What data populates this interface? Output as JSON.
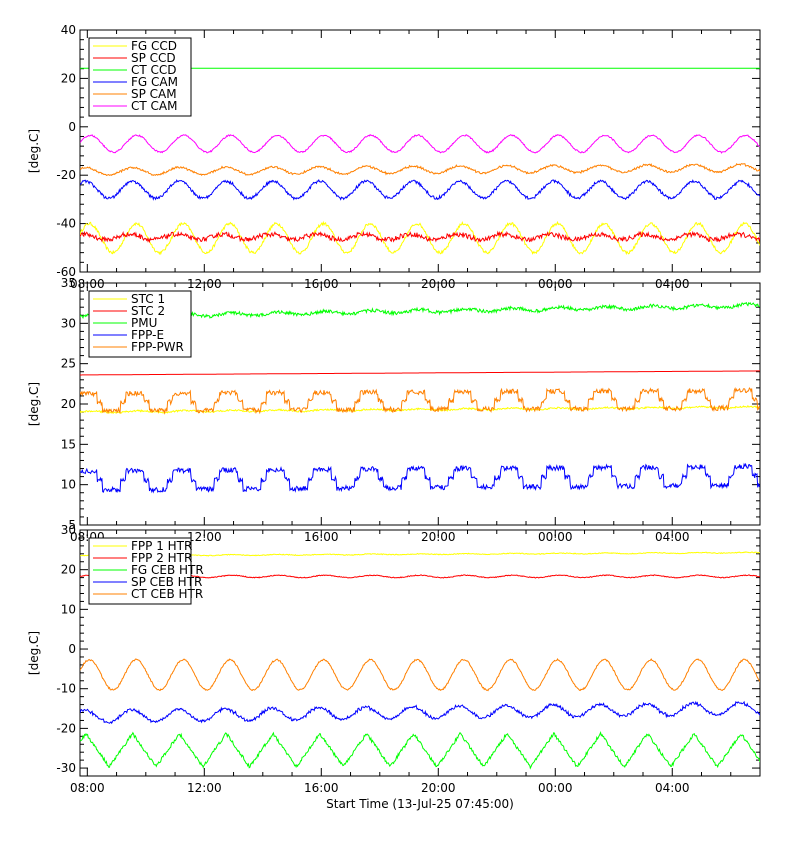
{
  "chart_data": [
    {
      "type": "line",
      "ylabel": "[deg.C]",
      "ylim": [
        -60,
        40
      ],
      "yticks": [
        -60,
        -40,
        -20,
        0,
        20,
        40
      ],
      "xlim": [
        0,
        23.25
      ],
      "xticks": [
        0.25,
        4.25,
        8.25,
        12.25,
        16.25,
        20.25
      ],
      "xtick_labels": [
        "08:00",
        "12:00",
        "16:00",
        "20:00",
        "00:00",
        "04:00"
      ],
      "legend_position": "top-left",
      "series": [
        {
          "name": "FG CCD",
          "color": "#ffff00",
          "base": -46,
          "amp": 6,
          "period": 1.6,
          "phase": 0.3,
          "noise": 0.6,
          "kind": "sine",
          "trend": 0
        },
        {
          "name": "SP CCD",
          "color": "#ff0000",
          "base": -45.5,
          "amp": 1.2,
          "period": 1.6,
          "phase": 1.2,
          "noise": 0.9,
          "kind": "step",
          "trend": 0
        },
        {
          "name": "CT CCD",
          "color": "#00ff00",
          "base": 24.2,
          "amp": 0,
          "period": 1.6,
          "phase": 0,
          "noise": 0,
          "kind": "flat",
          "trend": 0
        },
        {
          "name": "FG CAM",
          "color": "#0000ff",
          "base": -26,
          "amp": 3.5,
          "period": 1.6,
          "phase": 0.8,
          "noise": 0.5,
          "kind": "step",
          "trend": 0
        },
        {
          "name": "SP CAM",
          "color": "#ff8000",
          "base": -18.5,
          "amp": 1.5,
          "period": 1.6,
          "phase": 0.8,
          "noise": 0.3,
          "kind": "step",
          "trend": 1.5
        },
        {
          "name": "CT CAM",
          "color": "#ff00ff",
          "base": -7,
          "amp": 3.5,
          "period": 1.6,
          "phase": 0.2,
          "noise": 0.3,
          "kind": "sine",
          "trend": 0
        }
      ]
    },
    {
      "type": "line",
      "ylabel": "[deg.C]",
      "ylim": [
        5,
        35
      ],
      "yticks": [
        5,
        10,
        15,
        20,
        25,
        30,
        35
      ],
      "xlim": [
        0,
        23.25
      ],
      "xticks": [
        0.25,
        4.25,
        8.25,
        12.25,
        16.25,
        20.25
      ],
      "xtick_labels": [
        "08:00",
        "12:00",
        "16:00",
        "20:00",
        "00:00",
        "04:00"
      ],
      "legend_position": "top-left",
      "series": [
        {
          "name": "STC 1",
          "color": "#ffff00",
          "base": 19,
          "amp": 0.1,
          "period": 1.6,
          "phase": 0,
          "noise": 0.1,
          "kind": "flat",
          "trend": 0.6
        },
        {
          "name": "STC 2",
          "color": "#ff0000",
          "base": 23.6,
          "amp": 0,
          "period": 1.6,
          "phase": 0,
          "noise": 0,
          "kind": "flat",
          "trend": 0.5
        },
        {
          "name": "PMU",
          "color": "#00ff00",
          "base": 30.8,
          "amp": 0.2,
          "period": 1.6,
          "phase": 0,
          "noise": 0.2,
          "kind": "flat",
          "trend": 1.4
        },
        {
          "name": "FPP-E",
          "color": "#0000ff",
          "base": 10.5,
          "amp": 1.3,
          "period": 1.6,
          "phase": 0.5,
          "noise": 0.3,
          "kind": "stair",
          "trend": 0.6
        },
        {
          "name": "FPP-PWR",
          "color": "#ff8000",
          "base": 20.2,
          "amp": 1.2,
          "period": 1.6,
          "phase": 0.5,
          "noise": 0.3,
          "kind": "stair",
          "trend": 0.4
        }
      ]
    },
    {
      "type": "line",
      "xlabel": "Start Time (13-Jul-25 07:45:00)",
      "ylabel": "[deg.C]",
      "ylim": [
        -32,
        30
      ],
      "yticks": [
        -30,
        -20,
        -10,
        0,
        10,
        20,
        30
      ],
      "xlim": [
        0,
        23.25
      ],
      "xticks": [
        0.25,
        4.25,
        8.25,
        12.25,
        16.25,
        20.25
      ],
      "xtick_labels": [
        "08:00",
        "12:00",
        "16:00",
        "20:00",
        "00:00",
        "04:00"
      ],
      "legend_position": "top-left",
      "series": [
        {
          "name": "FPP 1 HTR",
          "color": "#ffff00",
          "base": 23.5,
          "amp": 0.1,
          "period": 1.6,
          "phase": 0,
          "noise": 0.1,
          "kind": "flat",
          "trend": 0.8
        },
        {
          "name": "FPP 2 HTR",
          "color": "#ff0000",
          "base": 18.3,
          "amp": 0.3,
          "period": 1.6,
          "phase": 0,
          "noise": 0.1,
          "kind": "flat",
          "trend": 0
        },
        {
          "name": "FG CEB HTR",
          "color": "#00ff00",
          "base": -25.5,
          "amp": 4.2,
          "period": 1.6,
          "phase": 0.6,
          "noise": 0.4,
          "kind": "saw",
          "trend": 0
        },
        {
          "name": "SP CEB HTR",
          "color": "#0000ff",
          "base": -17,
          "amp": 1.5,
          "period": 1.6,
          "phase": 0.9,
          "noise": 0.3,
          "kind": "step",
          "trend": 2
        },
        {
          "name": "CT CEB HTR",
          "color": "#ff8000",
          "base": -6.5,
          "amp": 3.8,
          "period": 1.6,
          "phase": 0.3,
          "noise": 0.2,
          "kind": "sine",
          "trend": 0
        }
      ]
    }
  ]
}
